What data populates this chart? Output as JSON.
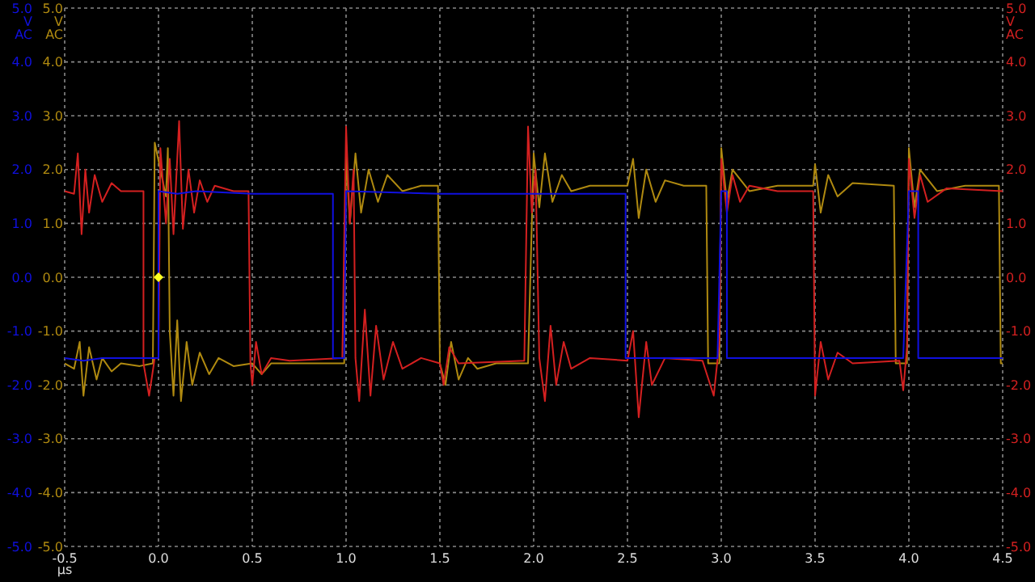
{
  "chart_data": {
    "type": "line",
    "xlabel": "µs",
    "ylabel": "V AC",
    "y3label": "V AC",
    "y2label": "V AC",
    "xlim": [
      -0.5,
      4.5
    ],
    "xticks": [
      {
        "value": -0.5,
        "label": "-0.5"
      },
      {
        "value": 0,
        "label": "0.0"
      },
      {
        "value": 0.5,
        "label": "0.5"
      },
      {
        "value": 1,
        "label": "1.0"
      },
      {
        "value": 1.5,
        "label": "1.5"
      },
      {
        "value": 2,
        "label": "2.0"
      },
      {
        "value": 2.5,
        "label": "2.5"
      },
      {
        "value": 3,
        "label": "3.0"
      },
      {
        "value": 3.5,
        "label": "3.5"
      },
      {
        "value": 4,
        "label": "4.0"
      },
      {
        "value": 4.5,
        "label": "4.5"
      }
    ],
    "ylim": [
      -5,
      5
    ],
    "yticks": [
      {
        "value": -5,
        "label": "-5.0"
      },
      {
        "value": -4,
        "label": "-4.0"
      },
      {
        "value": -3,
        "label": "-3.0"
      },
      {
        "value": -2,
        "label": "-2.0"
      },
      {
        "value": -1,
        "label": "-1.0"
      },
      {
        "value": 0,
        "label": "0.0"
      },
      {
        "value": 1,
        "label": "1.0"
      },
      {
        "value": 2,
        "label": "2.0"
      },
      {
        "value": 3,
        "label": "3.0"
      },
      {
        "value": 4,
        "label": "4.0"
      },
      {
        "value": 5,
        "label": "5.0"
      }
    ],
    "y3lim": [
      -5,
      5
    ],
    "y3ticks": [
      {
        "value": -5,
        "label": "-5.0"
      },
      {
        "value": -4,
        "label": "-4.0"
      },
      {
        "value": -3,
        "label": "-3.0"
      },
      {
        "value": -2,
        "label": "-2.0"
      },
      {
        "value": -1,
        "label": "-1.0"
      },
      {
        "value": 0,
        "label": "0.0"
      },
      {
        "value": 1,
        "label": "1.0"
      },
      {
        "value": 2,
        "label": "2.0"
      },
      {
        "value": 3,
        "label": "3.0"
      },
      {
        "value": 4,
        "label": "4.0"
      },
      {
        "value": 5,
        "label": "5.0"
      }
    ],
    "y2lim": [
      -5,
      5
    ],
    "y2ticks": [
      {
        "value": -5,
        "label": "-5.0"
      },
      {
        "value": -4,
        "label": "-4.0"
      },
      {
        "value": -3,
        "label": "-3.0"
      },
      {
        "value": -2,
        "label": "-2.0"
      },
      {
        "value": -1,
        "label": "-1.0"
      },
      {
        "value": 0,
        "label": "0.0"
      },
      {
        "value": 1,
        "label": "1.0"
      },
      {
        "value": 2,
        "label": "2.0"
      },
      {
        "value": 3,
        "label": "3.0"
      },
      {
        "value": 4,
        "label": "4.0"
      },
      {
        "value": 5,
        "label": "5.0"
      }
    ],
    "grid": true,
    "line_style": "solid",
    "series": [
      {
        "color": "#b08a10",
        "axis": "y3",
        "x": [
          -0.5,
          -0.45,
          -0.42,
          -0.4,
          -0.37,
          -0.33,
          -0.3,
          -0.25,
          -0.2,
          -0.1,
          -0.03,
          -0.02,
          0.04,
          0.05,
          0.06,
          0.08,
          0.1,
          0.12,
          0.15,
          0.18,
          0.22,
          0.27,
          0.32,
          0.4,
          0.5,
          0.55,
          0.6,
          0.95,
          0.99,
          1.0,
          1.02,
          1.05,
          1.08,
          1.12,
          1.17,
          1.22,
          1.3,
          1.4,
          1.49,
          1.5,
          1.53,
          1.56,
          1.6,
          1.65,
          1.7,
          1.8,
          1.97,
          2.0,
          2.03,
          2.06,
          2.1,
          2.15,
          2.2,
          2.3,
          2.5,
          2.53,
          2.56,
          2.6,
          2.65,
          2.7,
          2.8,
          2.92,
          2.93,
          2.99,
          3.0,
          3.03,
          3.06,
          3.15,
          3.3,
          3.49,
          3.5,
          3.53,
          3.57,
          3.62,
          3.7,
          3.92,
          3.93,
          3.99,
          4.0,
          4.03,
          4.06,
          4.15,
          4.3,
          4.48,
          4.49,
          4.5
        ],
        "values": [
          -1.6,
          -1.7,
          -1.2,
          -2.2,
          -1.3,
          -1.9,
          -1.5,
          -1.75,
          -1.6,
          -1.65,
          -1.6,
          2.5,
          1.5,
          2.4,
          -1.0,
          -2.2,
          -0.8,
          -2.3,
          -1.2,
          -2.0,
          -1.4,
          -1.8,
          -1.5,
          -1.65,
          -1.6,
          -1.8,
          -1.6,
          -1.6,
          -1.6,
          2.3,
          1.0,
          2.3,
          1.2,
          2.0,
          1.4,
          1.9,
          1.6,
          1.7,
          1.7,
          -1.6,
          -2.0,
          -1.2,
          -1.9,
          -1.5,
          -1.7,
          -1.6,
          -1.6,
          2.3,
          1.3,
          2.3,
          1.4,
          1.9,
          1.6,
          1.7,
          1.7,
          2.2,
          1.1,
          2.0,
          1.4,
          1.8,
          1.7,
          1.7,
          -1.6,
          -1.6,
          2.4,
          1.4,
          2.0,
          1.6,
          1.7,
          1.7,
          2.1,
          1.2,
          1.9,
          1.5,
          1.75,
          1.7,
          -1.6,
          -1.6,
          2.4,
          1.3,
          2.0,
          1.6,
          1.7,
          1.7,
          -1.6,
          -1.6
        ]
      },
      {
        "color": "#d42020",
        "axis": "y2",
        "x": [
          -0.5,
          -0.45,
          -0.43,
          -0.41,
          -0.39,
          -0.37,
          -0.34,
          -0.3,
          -0.25,
          -0.2,
          -0.1,
          -0.08,
          -0.08,
          -0.05,
          -0.02,
          0.0,
          0.01,
          0.04,
          0.06,
          0.08,
          0.11,
          0.13,
          0.16,
          0.19,
          0.22,
          0.26,
          0.3,
          0.4,
          0.48,
          0.49,
          0.5,
          0.52,
          0.55,
          0.6,
          0.7,
          0.98,
          1.0,
          1.02,
          1.04,
          1.05,
          1.07,
          1.1,
          1.13,
          1.16,
          1.2,
          1.25,
          1.3,
          1.4,
          1.5,
          1.52,
          1.55,
          1.6,
          1.95,
          1.97,
          1.99,
          2.01,
          2.03,
          2.06,
          2.09,
          2.12,
          2.16,
          2.2,
          2.3,
          2.5,
          2.53,
          2.56,
          2.6,
          2.63,
          2.7,
          2.9,
          2.96,
          2.99,
          3.0,
          3.03,
          3.06,
          3.1,
          3.15,
          3.3,
          3.49,
          3.5,
          3.53,
          3.57,
          3.62,
          3.7,
          3.95,
          3.97,
          3.99,
          4.0,
          4.03,
          4.06,
          4.1,
          4.2,
          4.5
        ],
        "values": [
          1.6,
          1.55,
          2.3,
          0.8,
          2.0,
          1.2,
          1.9,
          1.4,
          1.75,
          1.6,
          1.6,
          1.6,
          -1.6,
          -2.2,
          -1.5,
          -1.5,
          2.4,
          1.0,
          2.2,
          0.8,
          2.9,
          0.9,
          2.0,
          1.2,
          1.8,
          1.4,
          1.7,
          1.6,
          1.6,
          -1.6,
          -2.0,
          -1.2,
          -1.8,
          -1.5,
          -1.55,
          -1.5,
          2.8,
          1.0,
          2.0,
          -1.5,
          -2.3,
          -0.6,
          -2.2,
          -0.9,
          -1.9,
          -1.2,
          -1.7,
          -1.5,
          -1.6,
          -2.0,
          -1.3,
          -1.6,
          -1.55,
          2.8,
          1.2,
          2.0,
          -1.5,
          -2.3,
          -0.9,
          -2.0,
          -1.2,
          -1.7,
          -1.5,
          -1.55,
          -1.0,
          -2.6,
          -1.2,
          -2.0,
          -1.5,
          -1.55,
          -2.2,
          -1.2,
          2.2,
          1.2,
          1.9,
          1.4,
          1.7,
          1.6,
          1.6,
          -2.2,
          -1.2,
          -1.9,
          -1.4,
          -1.6,
          -1.55,
          -2.1,
          -1.3,
          2.2,
          1.1,
          1.9,
          1.4,
          1.65,
          1.6
        ]
      },
      {
        "color": "#1010e0",
        "axis": "y",
        "x": [
          -0.5,
          -0.4,
          -0.3,
          -0.2,
          -0.1,
          0.0,
          0.0,
          0.1,
          0.2,
          0.5,
          0.93,
          0.93,
          0.99,
          1.0,
          1.5,
          2.0,
          2.49,
          2.49,
          2.6,
          2.98,
          3.0,
          3.03,
          3.03,
          3.5,
          3.97,
          4.0,
          4.05,
          4.05,
          4.5
        ],
        "values": [
          -1.5,
          -1.55,
          -1.5,
          -1.5,
          -1.5,
          -1.5,
          1.6,
          1.55,
          1.6,
          1.55,
          1.55,
          -1.5,
          -1.5,
          1.6,
          1.55,
          1.55,
          1.55,
          -1.5,
          -1.5,
          -1.5,
          1.6,
          1.6,
          -1.5,
          -1.5,
          -1.5,
          1.6,
          1.6,
          -1.5,
          -1.5
        ]
      }
    ]
  }
}
